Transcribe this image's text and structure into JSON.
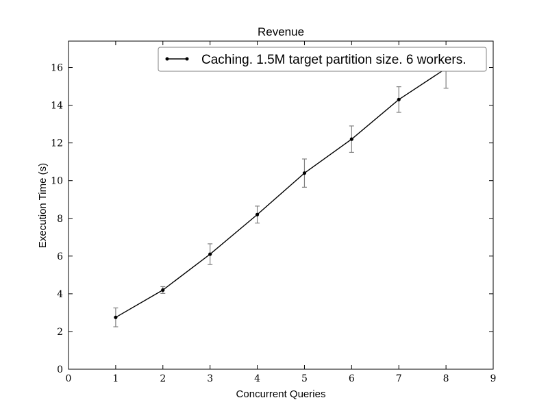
{
  "chart_data": {
    "type": "line",
    "title": "Revenue",
    "xlabel": "Concurrent Queries",
    "ylabel": "Execution Time (s)",
    "xlim": [
      0,
      9
    ],
    "ylim": [
      0,
      17.4
    ],
    "xticks": [
      0,
      1,
      2,
      3,
      4,
      5,
      6,
      7,
      8,
      9
    ],
    "yticks": [
      0,
      2,
      4,
      6,
      8,
      10,
      12,
      14,
      16
    ],
    "grid": false,
    "legend": {
      "placement": "top-right"
    },
    "series": [
      {
        "name": "Caching. 1.5M target partition size. 6 workers.",
        "color": "#000000",
        "errorbar_color": "#808080",
        "x": [
          1,
          2,
          3,
          4,
          5,
          6,
          7,
          8
        ],
        "y": [
          2.75,
          4.2,
          6.1,
          8.2,
          10.4,
          12.2,
          14.3,
          15.95
        ],
        "yerr": [
          0.5,
          0.18,
          0.55,
          0.45,
          0.75,
          0.7,
          0.68,
          1.05
        ]
      }
    ]
  }
}
